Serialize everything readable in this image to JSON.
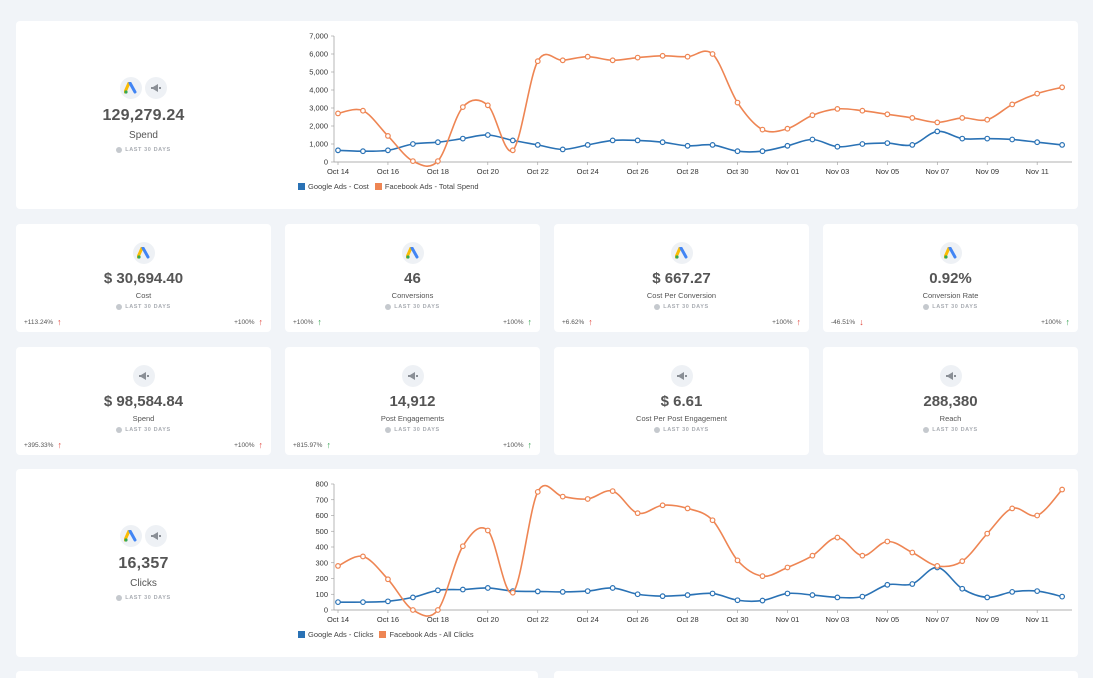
{
  "colors": {
    "google": "#2a72b5",
    "facebook": "#ee8553",
    "up_good": "#2e9e4b",
    "up_bad": "#e0443a"
  },
  "spend_card": {
    "value": "129,279.24",
    "label": "Spend",
    "period": "LAST 30 DAYS"
  },
  "clicks_card": {
    "value": "16,357",
    "label": "Clicks",
    "period": "LAST 30 DAYS"
  },
  "chart_data": [
    {
      "type": "line",
      "title": "",
      "xlabel": "",
      "ylabel": "",
      "ylim": [
        0,
        7000
      ],
      "yticks": [
        "0",
        "1,000",
        "2,000",
        "3,000",
        "4,000",
        "5,000",
        "6,000",
        "7,000"
      ],
      "ytick_values": [
        0,
        1000,
        2000,
        3000,
        4000,
        5000,
        6000,
        7000
      ],
      "xticks": [
        "Oct 14",
        "Oct 16",
        "Oct 18",
        "Oct 20",
        "Oct 22",
        "Oct 24",
        "Oct 26",
        "Oct 28",
        "Oct 30",
        "Nov 01",
        "Nov 03",
        "Nov 05",
        "Nov 07",
        "Nov 09",
        "Nov 11"
      ],
      "legend": "bottom-left",
      "series": [
        {
          "name": "Google Ads - Cost",
          "color": "#2a72b5",
          "values": [
            650,
            600,
            650,
            1000,
            1100,
            1300,
            1500,
            1200,
            950,
            700,
            950,
            1200,
            1200,
            1100,
            900,
            950,
            600,
            600,
            900,
            1250,
            850,
            1000,
            1050,
            950,
            1700,
            1300,
            1300,
            1250,
            1100,
            950
          ]
        },
        {
          "name": "Facebook Ads - Total Spend",
          "color": "#ee8553",
          "values": [
            2700,
            2850,
            1450,
            50,
            50,
            3050,
            3150,
            650,
            5600,
            5650,
            5850,
            5650,
            5800,
            5900,
            5850,
            6000,
            3300,
            1800,
            1850,
            2600,
            2950,
            2850,
            2650,
            2450,
            2200,
            2450,
            2350,
            3200,
            3800,
            4150
          ]
        }
      ]
    },
    {
      "type": "line",
      "title": "",
      "xlabel": "",
      "ylabel": "",
      "ylim": [
        0,
        800
      ],
      "yticks": [
        "0",
        "100",
        "200",
        "300",
        "400",
        "500",
        "600",
        "700",
        "800"
      ],
      "ytick_values": [
        0,
        100,
        200,
        300,
        400,
        500,
        600,
        700,
        800
      ],
      "xticks": [
        "Oct 14",
        "Oct 16",
        "Oct 18",
        "Oct 20",
        "Oct 22",
        "Oct 24",
        "Oct 26",
        "Oct 28",
        "Oct 30",
        "Nov 01",
        "Nov 03",
        "Nov 05",
        "Nov 07",
        "Nov 09",
        "Nov 11"
      ],
      "legend": "bottom-left",
      "series": [
        {
          "name": "Google Ads - Clicks",
          "color": "#2a72b5",
          "values": [
            50,
            50,
            55,
            80,
            125,
            130,
            140,
            120,
            118,
            115,
            120,
            140,
            100,
            88,
            95,
            105,
            62,
            60,
            105,
            95,
            80,
            85,
            160,
            165,
            270,
            135,
            80,
            115,
            120,
            85
          ]
        },
        {
          "name": "Facebook Ads - All Clicks",
          "color": "#ee8553",
          "values": [
            280,
            340,
            195,
            0,
            0,
            405,
            505,
            110,
            750,
            720,
            705,
            755,
            615,
            665,
            645,
            570,
            315,
            215,
            270,
            345,
            460,
            345,
            435,
            365,
            280,
            310,
            485,
            645,
            600,
            765
          ]
        }
      ]
    }
  ],
  "kpis": [
    {
      "icon": "google-ads",
      "value": "$ 30,694.40",
      "label": "Cost",
      "period": "LAST 30 DAYS",
      "left_delta": "+113.24%",
      "left_arrow": "up-red",
      "right_delta": "+100%",
      "right_arrow": "up-red"
    },
    {
      "icon": "google-ads",
      "value": "46",
      "label": "Conversions",
      "period": "LAST 30 DAYS",
      "left_delta": "+100%",
      "left_arrow": "up-green",
      "right_delta": "+100%",
      "right_arrow": "up-green"
    },
    {
      "icon": "google-ads",
      "value": "$ 667.27",
      "label": "Cost Per Conversion",
      "period": "LAST 30 DAYS",
      "left_delta": "+6.62%",
      "left_arrow": "up-red",
      "right_delta": "+100%",
      "right_arrow": "up-red"
    },
    {
      "icon": "google-ads",
      "value": "0.92%",
      "label": "Conversion Rate",
      "period": "LAST 30 DAYS",
      "left_delta": "-46.51%",
      "left_arrow": "down-red",
      "right_delta": "+100%",
      "right_arrow": "up-green"
    },
    {
      "icon": "megaphone",
      "value": "$ 98,584.84",
      "label": "Spend",
      "period": "LAST 30 DAYS",
      "left_delta": "+395.33%",
      "left_arrow": "up-red",
      "right_delta": "+100%",
      "right_arrow": "up-red"
    },
    {
      "icon": "megaphone",
      "value": "14,912",
      "label": "Post Engagements",
      "period": "LAST 30 DAYS",
      "left_delta": "+815.97%",
      "left_arrow": "up-green",
      "right_delta": "+100%",
      "right_arrow": "up-green"
    },
    {
      "icon": "megaphone",
      "value": "$ 6.61",
      "label": "Cost Per Post Engagement",
      "period": "LAST 30 DAYS",
      "left_delta": "",
      "left_arrow": "",
      "right_delta": "",
      "right_arrow": ""
    },
    {
      "icon": "megaphone",
      "value": "288,380",
      "label": "Reach",
      "period": "LAST 30 DAYS",
      "left_delta": "",
      "left_arrow": "",
      "right_delta": "",
      "right_arrow": ""
    }
  ],
  "arrows": {
    "up": "↑",
    "down": "↓"
  }
}
